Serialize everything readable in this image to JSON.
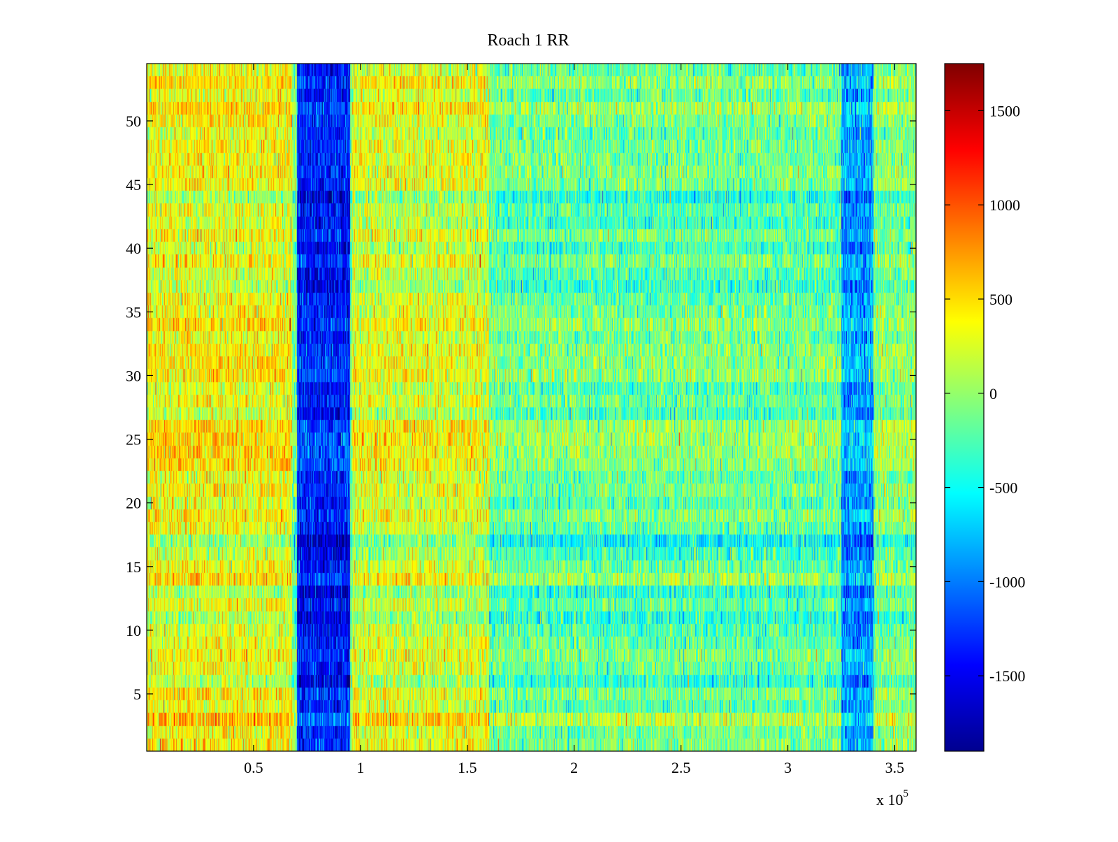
{
  "chart_data": {
    "type": "heatmap",
    "title": "Roach 1 RR",
    "xlabel": "",
    "ylabel": "",
    "x_range": [
      0,
      360000
    ],
    "y_range": [
      0.5,
      54.5
    ],
    "rows": 54,
    "x_exponent_label": "x 10",
    "x_exponent_power": "5",
    "x_ticks": [
      {
        "value": 50000,
        "label": "0.5"
      },
      {
        "value": 100000,
        "label": "1"
      },
      {
        "value": 150000,
        "label": "1.5"
      },
      {
        "value": 200000,
        "label": "2"
      },
      {
        "value": 250000,
        "label": "2.5"
      },
      {
        "value": 300000,
        "label": "3"
      },
      {
        "value": 350000,
        "label": "3.5"
      }
    ],
    "y_ticks": [
      {
        "value": 5,
        "label": "5"
      },
      {
        "value": 10,
        "label": "10"
      },
      {
        "value": 15,
        "label": "15"
      },
      {
        "value": 20,
        "label": "20"
      },
      {
        "value": 25,
        "label": "25"
      },
      {
        "value": 30,
        "label": "30"
      },
      {
        "value": 35,
        "label": "35"
      },
      {
        "value": 40,
        "label": "40"
      },
      {
        "value": 45,
        "label": "45"
      },
      {
        "value": 50,
        "label": "50"
      }
    ],
    "colorbar": {
      "colormap": "jet",
      "range": [
        -1900,
        1750
      ],
      "ticks": [
        {
          "value": 1500,
          "label": "1500"
        },
        {
          "value": 1000,
          "label": "1000"
        },
        {
          "value": 500,
          "label": "500"
        },
        {
          "value": 0,
          "label": "0"
        },
        {
          "value": -500,
          "label": "-500"
        },
        {
          "value": -1000,
          "label": "-1000"
        },
        {
          "value": -1500,
          "label": "-1500"
        }
      ]
    },
    "baseline_value": -100,
    "value_regions": [
      {
        "x_start": 0,
        "x_end": 68000,
        "value": 350,
        "note": "warm band, left"
      },
      {
        "x_start": 70000,
        "x_end": 95000,
        "value": -1350,
        "note": "strong negative band"
      },
      {
        "x_start": 96000,
        "x_end": 160000,
        "value": 250,
        "note": "warm band"
      },
      {
        "x_start": 160000,
        "x_end": 325000,
        "value": -150,
        "note": "neutral region"
      },
      {
        "x_start": 325000,
        "x_end": 340000,
        "value": -850,
        "note": "negative band, right"
      },
      {
        "x_start": 340000,
        "x_end": 360000,
        "value": -50,
        "note": "edge region"
      }
    ]
  }
}
